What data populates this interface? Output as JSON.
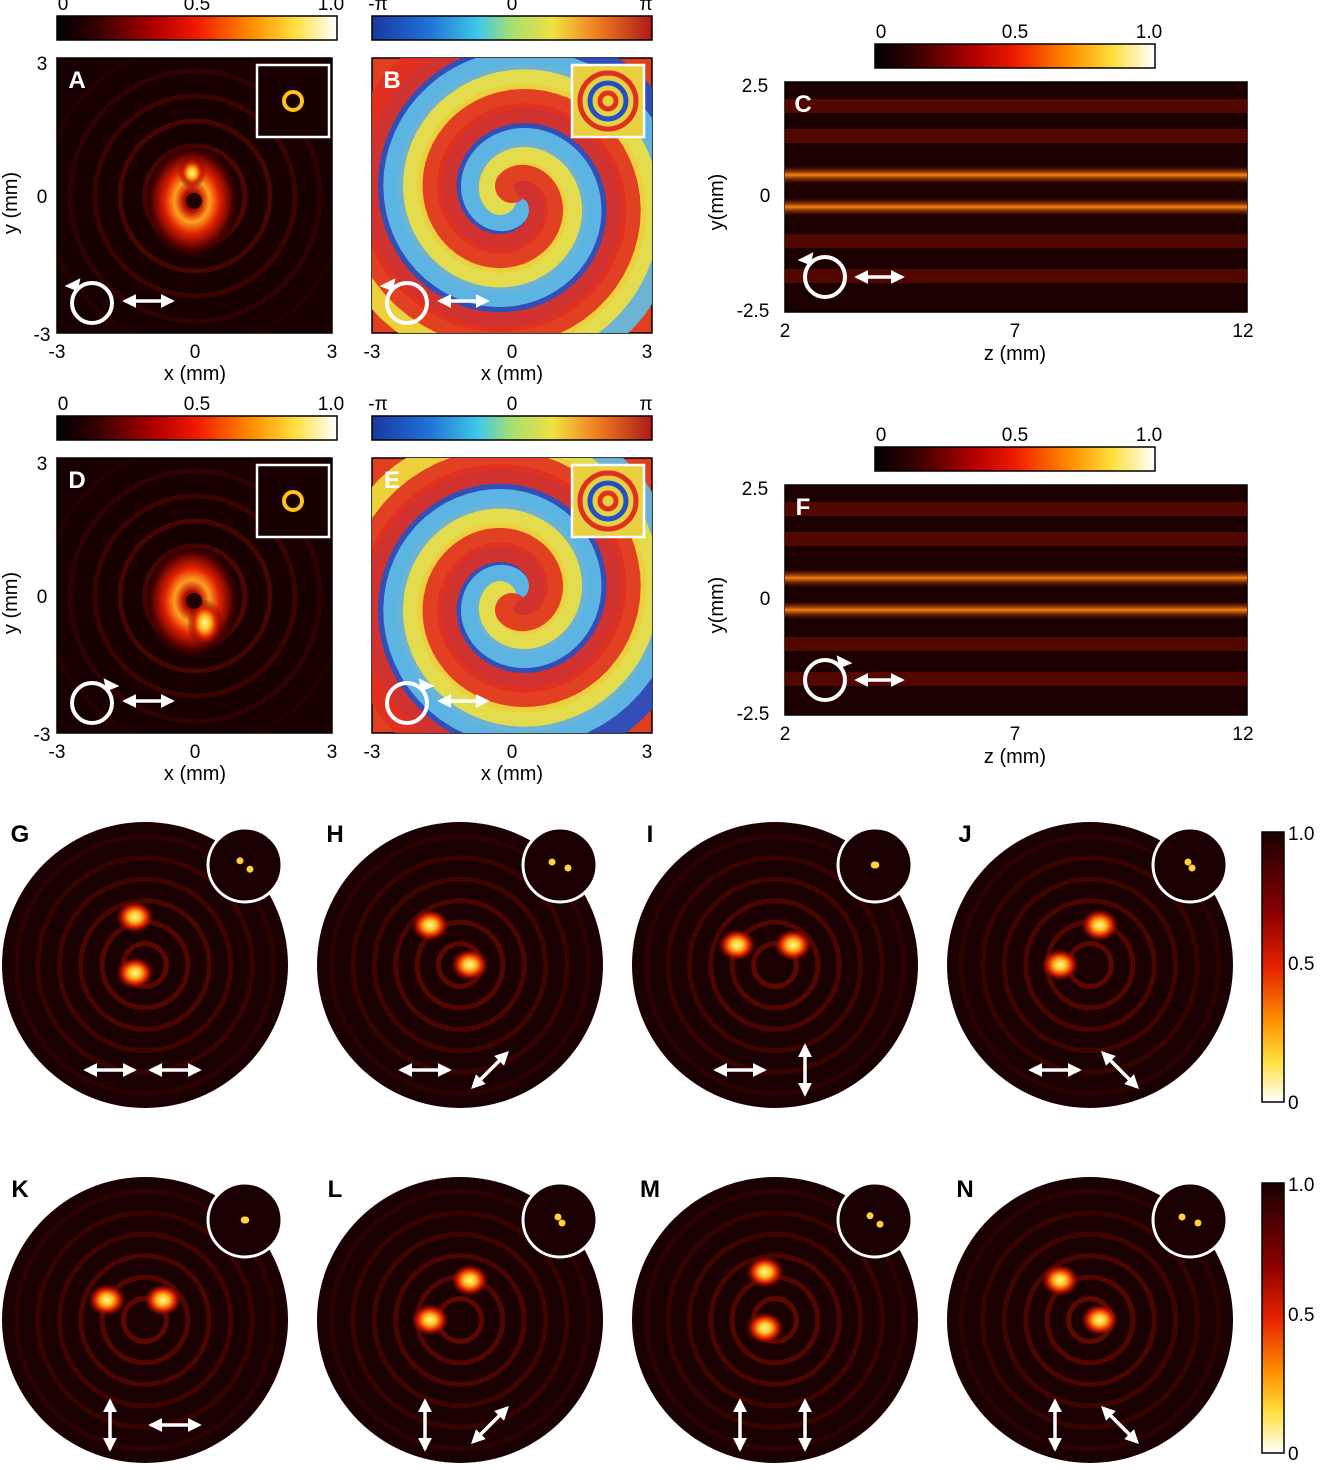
{
  "figure": {
    "panel_labels": [
      "A",
      "B",
      "C",
      "D",
      "E",
      "F",
      "G",
      "H",
      "I",
      "J",
      "K",
      "L",
      "M",
      "N"
    ],
    "intensity_colorbar_ticks": [
      "0",
      "0.5",
      "1.0"
    ],
    "phase_colorbar_ticks": [
      "-π",
      "0",
      "π"
    ],
    "vertical_colorbar_ticks": [
      "1.0",
      "0.5",
      "0"
    ],
    "xy_axis": {
      "xlabel": "x (mm)",
      "ylabel": "y (mm)",
      "xticks": [
        "-3",
        "0",
        "3"
      ],
      "yticks": [
        "3",
        "0",
        "-3"
      ]
    },
    "zy_axis": {
      "xlabel": "z (mm)",
      "ylabel": "y(mm)",
      "xticks": [
        "2",
        "7",
        "12"
      ],
      "yticks": [
        "2.5",
        "0",
        "-2.5"
      ]
    },
    "colors": {
      "hot_dark": "#1a0000",
      "hot_mid": "#e02000",
      "hot_bright": "#ffe040",
      "jet_blue": "#2050c0",
      "jet_red": "#d02020"
    }
  },
  "chart_data": [
    {
      "type": "heatmap",
      "panel": "A",
      "title": "",
      "xlabel": "x (mm)",
      "ylabel": "y (mm)",
      "xlim": [
        -3,
        3
      ],
      "ylim": [
        -3,
        3
      ],
      "colorbar": [
        0,
        1.0
      ],
      "inset": true,
      "polarization": [
        "circular-counterclockwise",
        "horizontal"
      ]
    },
    {
      "type": "heatmap",
      "panel": "B",
      "title": "",
      "xlabel": "x (mm)",
      "ylabel": "",
      "xlim": [
        -3,
        3
      ],
      "ylim": [
        -3,
        3
      ],
      "colorbar": [
        "-π",
        "π"
      ],
      "inset": true,
      "polarization": [
        "circular-counterclockwise",
        "horizontal"
      ]
    },
    {
      "type": "heatmap",
      "panel": "C",
      "title": "",
      "xlabel": "z (mm)",
      "ylabel": "y(mm)",
      "xlim": [
        2,
        12
      ],
      "ylim": [
        -2.5,
        2.5
      ],
      "colorbar": [
        0,
        1.0
      ],
      "polarization": [
        "circular-counterclockwise",
        "horizontal"
      ]
    },
    {
      "type": "heatmap",
      "panel": "D",
      "title": "",
      "xlabel": "x (mm)",
      "ylabel": "y (mm)",
      "xlim": [
        -3,
        3
      ],
      "ylim": [
        -3,
        3
      ],
      "colorbar": [
        0,
        1.0
      ],
      "inset": true,
      "polarization": [
        "circular-clockwise",
        "horizontal"
      ]
    },
    {
      "type": "heatmap",
      "panel": "E",
      "title": "",
      "xlabel": "x (mm)",
      "ylabel": "",
      "xlim": [
        -3,
        3
      ],
      "ylim": [
        -3,
        3
      ],
      "colorbar": [
        "-π",
        "π"
      ],
      "inset": true,
      "polarization": [
        "circular-clockwise",
        "horizontal"
      ]
    },
    {
      "type": "heatmap",
      "panel": "F",
      "title": "",
      "xlabel": "z (mm)",
      "ylabel": "y(mm)",
      "xlim": [
        2,
        12
      ],
      "ylim": [
        -2.5,
        2.5
      ],
      "colorbar": [
        0,
        1.0
      ],
      "polarization": [
        "circular-clockwise",
        "horizontal"
      ]
    },
    {
      "type": "heatmap",
      "panel": "G",
      "polarization_angles_deg": [
        0,
        0
      ]
    },
    {
      "type": "heatmap",
      "panel": "H",
      "polarization_angles_deg": [
        0,
        45
      ]
    },
    {
      "type": "heatmap",
      "panel": "I",
      "polarization_angles_deg": [
        0,
        90
      ]
    },
    {
      "type": "heatmap",
      "panel": "J",
      "polarization_angles_deg": [
        0,
        135
      ]
    },
    {
      "type": "heatmap",
      "panel": "K",
      "polarization_angles_deg": [
        90,
        0
      ]
    },
    {
      "type": "heatmap",
      "panel": "L",
      "polarization_angles_deg": [
        90,
        45
      ]
    },
    {
      "type": "heatmap",
      "panel": "M",
      "polarization_angles_deg": [
        90,
        90
      ]
    },
    {
      "type": "heatmap",
      "panel": "N",
      "polarization_angles_deg": [
        90,
        135
      ]
    }
  ]
}
